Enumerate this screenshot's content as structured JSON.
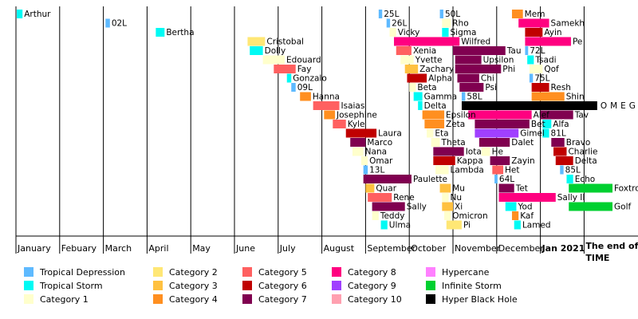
{
  "chart_data": {
    "type": "timeline",
    "title": "",
    "xlabel": "",
    "ylabel": "",
    "x_axis": {
      "months": [
        "January",
        "Febuary",
        "March",
        "April",
        "May",
        "June",
        "July",
        "August",
        "September",
        "October",
        "November",
        "December",
        "Jan 2021"
      ],
      "end_label_line1": "The end of",
      "end_label_line2": "TIME"
    },
    "grid": "vertical month lines",
    "legend": {
      "placement": "bottom",
      "items": [
        {
          "name": "Tropical Depression",
          "color": "#5ebaff"
        },
        {
          "name": "Tropical Storm",
          "color": "#00faf4"
        },
        {
          "name": "Category 1",
          "color": "#ffffcc"
        },
        {
          "name": "Category 2",
          "color": "#ffe775"
        },
        {
          "name": "Category 3",
          "color": "#ffc140"
        },
        {
          "name": "Category 4",
          "color": "#ff8f20"
        },
        {
          "name": "Category 5",
          "color": "#ff6060"
        },
        {
          "name": "Category 6",
          "color": "#c00000"
        },
        {
          "name": "Category 7",
          "color": "#800050"
        },
        {
          "name": "Category 8",
          "color": "#ff0080"
        },
        {
          "name": "Category 9",
          "color": "#a040ff"
        },
        {
          "name": "Category 10",
          "color": "#ffa0b0"
        },
        {
          "name": "Hypercane",
          "color": "#ff80ff"
        },
        {
          "name": "Infinite Storm",
          "color": "#00d030"
        },
        {
          "name": "Hyper Black Hole",
          "color": "#000000"
        }
      ]
    },
    "storms": [
      {
        "name": "Arthur",
        "start": 0.02,
        "end": 0.15,
        "row": 0,
        "cat": "Tropical Storm"
      },
      {
        "name": "02L",
        "start": 2.05,
        "end": 2.15,
        "row": 1,
        "cat": "Tropical Depression"
      },
      {
        "name": "Bertha",
        "start": 3.2,
        "end": 3.4,
        "row": 2,
        "cat": "Tropical Storm"
      },
      {
        "name": "Cristobal",
        "start": 5.3,
        "end": 5.7,
        "row": 3,
        "cat": "Category 2"
      },
      {
        "name": "Dolly",
        "start": 5.35,
        "end": 5.65,
        "row": 4,
        "cat": "Tropical Storm"
      },
      {
        "name": "Edouard",
        "start": 5.65,
        "end": 6.15,
        "row": 5,
        "cat": "Category 1"
      },
      {
        "name": "Fay",
        "start": 5.9,
        "end": 6.4,
        "row": 6,
        "cat": "Category 5"
      },
      {
        "name": "Gonzalo",
        "start": 6.2,
        "end": 6.3,
        "row": 7,
        "cat": "Tropical Storm"
      },
      {
        "name": "09L",
        "start": 6.3,
        "end": 6.4,
        "row": 8,
        "cat": "Tropical Depression"
      },
      {
        "name": "Hanna",
        "start": 6.5,
        "end": 6.75,
        "row": 9,
        "cat": "Category 4"
      },
      {
        "name": "Isaias",
        "start": 6.8,
        "end": 7.4,
        "row": 10,
        "cat": "Category 5"
      },
      {
        "name": "Josephine",
        "start": 7.05,
        "end": 7.3,
        "row": 11,
        "cat": "Category 4"
      },
      {
        "name": "Kyle",
        "start": 7.25,
        "end": 7.55,
        "row": 12,
        "cat": "Category 5"
      },
      {
        "name": "Laura",
        "start": 7.55,
        "end": 8.25,
        "row": 13,
        "cat": "Category 6"
      },
      {
        "name": "Marco",
        "start": 7.65,
        "end": 8.0,
        "row": 14,
        "cat": "Category 7"
      },
      {
        "name": "Nana",
        "start": 7.7,
        "end": 7.95,
        "row": 15,
        "cat": "Category 1"
      },
      {
        "name": "Omar",
        "start": 7.9,
        "end": 8.05,
        "row": 16,
        "cat": "Category 1"
      },
      {
        "name": "13L",
        "start": 7.95,
        "end": 8.05,
        "row": 17,
        "cat": "Tropical Depression"
      },
      {
        "name": "Paulette",
        "start": 7.95,
        "end": 9.05,
        "row": 18,
        "cat": "Category 7"
      },
      {
        "name": "Quar",
        "start": 8.0,
        "end": 8.2,
        "row": 19,
        "cat": "Category 3"
      },
      {
        "name": "Rene",
        "start": 8.05,
        "end": 8.6,
        "row": 20,
        "cat": "Category 5"
      },
      {
        "name": "Sally",
        "start": 8.15,
        "end": 8.9,
        "row": 21,
        "cat": "Category 7"
      },
      {
        "name": "Teddy",
        "start": 8.15,
        "end": 8.3,
        "row": 22,
        "cat": "Category 1"
      },
      {
        "name": "Ulma",
        "start": 8.35,
        "end": 8.5,
        "row": 23,
        "cat": "Tropical Storm"
      },
      {
        "name": "25L",
        "start": 8.3,
        "end": 8.38,
        "row": 0,
        "cat": "Tropical Depression"
      },
      {
        "name": "26L",
        "start": 8.48,
        "end": 8.56,
        "row": 1,
        "cat": "Tropical Depression"
      },
      {
        "name": "Vicky",
        "start": 8.55,
        "end": 8.7,
        "row": 2,
        "cat": "Category 1"
      },
      {
        "name": "Wilfred",
        "start": 8.65,
        "end": 10.15,
        "row": 3,
        "cat": "Category 8"
      },
      {
        "name": "Xenia",
        "start": 8.7,
        "end": 9.05,
        "row": 4,
        "cat": "Category 5"
      },
      {
        "name": "Yvette",
        "start": 8.8,
        "end": 9.1,
        "row": 5,
        "cat": "Category 1"
      },
      {
        "name": "Zachary",
        "start": 8.9,
        "end": 9.2,
        "row": 6,
        "cat": "Category 3"
      },
      {
        "name": "Alpha",
        "start": 8.95,
        "end": 9.4,
        "row": 7,
        "cat": "Category 6"
      },
      {
        "name": "Beta",
        "start": 9.0,
        "end": 9.15,
        "row": 8,
        "cat": "Category 1"
      },
      {
        "name": "Gamma",
        "start": 9.1,
        "end": 9.3,
        "row": 9,
        "cat": "Tropical Storm"
      },
      {
        "name": "Delta",
        "start": 9.2,
        "end": 9.3,
        "row": 10,
        "cat": "Tropical Storm"
      },
      {
        "name": "Epsilon",
        "start": 9.3,
        "end": 9.8,
        "row": 11,
        "cat": "Category 4"
      },
      {
        "name": "Zeta",
        "start": 9.35,
        "end": 9.8,
        "row": 12,
        "cat": "Category 4"
      },
      {
        "name": "Eta",
        "start": 9.4,
        "end": 9.55,
        "row": 13,
        "cat": "Category 1"
      },
      {
        "name": "Theta",
        "start": 9.5,
        "end": 9.7,
        "row": 14,
        "cat": "Category 1"
      },
      {
        "name": "Iota",
        "start": 9.55,
        "end": 10.25,
        "row": 15,
        "cat": "Category 7"
      },
      {
        "name": "Kappa",
        "start": 9.55,
        "end": 10.05,
        "row": 16,
        "cat": "Category 6"
      },
      {
        "name": "Lambda",
        "start": 9.6,
        "end": 9.9,
        "row": 17,
        "cat": "Category 1"
      },
      {
        "name": "Mu",
        "start": 9.7,
        "end": 9.95,
        "row": 19,
        "cat": "Category 3"
      },
      {
        "name": "Nu",
        "start": 9.75,
        "end": 9.9,
        "row": 20,
        "cat": "Category 1"
      },
      {
        "name": "Xi",
        "start": 9.75,
        "end": 10.0,
        "row": 21,
        "cat": "Category 3"
      },
      {
        "name": "Omicron",
        "start": 9.8,
        "end": 9.95,
        "row": 22,
        "cat": "Category 1"
      },
      {
        "name": "Pi",
        "start": 9.85,
        "end": 10.2,
        "row": 23,
        "cat": "Category 2"
      },
      {
        "name": "50L",
        "start": 9.7,
        "end": 9.78,
        "row": 0,
        "cat": "Tropical Depression"
      },
      {
        "name": "Rho",
        "start": 9.75,
        "end": 9.95,
        "row": 1,
        "cat": "Category 1"
      },
      {
        "name": "Sigma",
        "start": 9.75,
        "end": 9.9,
        "row": 2,
        "cat": "Tropical Storm"
      },
      {
        "name": "Tau",
        "start": 10.0,
        "end": 11.2,
        "row": 4,
        "cat": "Category 7"
      },
      {
        "name": "Upsilon",
        "start": 10.05,
        "end": 10.65,
        "row": 5,
        "cat": "Category 7"
      },
      {
        "name": "Phi",
        "start": 10.05,
        "end": 11.1,
        "row": 6,
        "cat": "Category 7"
      },
      {
        "name": "Chi",
        "start": 10.1,
        "end": 10.6,
        "row": 7,
        "cat": "Category 7"
      },
      {
        "name": "Psi",
        "start": 10.15,
        "end": 10.7,
        "row": 8,
        "cat": "Category 7"
      },
      {
        "name": "58L",
        "start": 10.2,
        "end": 10.28,
        "row": 9,
        "cat": "Tropical Depression"
      },
      {
        "name": "OMEGA",
        "start": 10.2,
        "end": 13.3,
        "row": 10,
        "cat": "Hyper Black Hole"
      },
      {
        "name": "Alef",
        "start": 10.35,
        "end": 11.8,
        "row": 11,
        "cat": "Category 8"
      },
      {
        "name": "Bet",
        "start": 10.5,
        "end": 11.75,
        "row": 12,
        "cat": "Category 7"
      },
      {
        "name": "Gimel",
        "start": 10.5,
        "end": 11.5,
        "row": 13,
        "cat": "Category 9"
      },
      {
        "name": "Dalet",
        "start": 10.6,
        "end": 11.3,
        "row": 14,
        "cat": "Category 7"
      },
      {
        "name": "He",
        "start": 10.65,
        "end": 10.85,
        "row": 15,
        "cat": "Category 1"
      },
      {
        "name": "Zayin",
        "start": 10.85,
        "end": 11.3,
        "row": 16,
        "cat": "Category 7"
      },
      {
        "name": "Het",
        "start": 10.9,
        "end": 11.15,
        "row": 17,
        "cat": "Category 5"
      },
      {
        "name": "64L",
        "start": 10.95,
        "end": 11.02,
        "row": 18,
        "cat": "Tropical Depression"
      },
      {
        "name": "Tet",
        "start": 11.05,
        "end": 11.4,
        "row": 19,
        "cat": "Category 7"
      },
      {
        "name": "Sally II",
        "start": 11.05,
        "end": 12.35,
        "row": 20,
        "cat": "Category 8"
      },
      {
        "name": "Yod",
        "start": 11.2,
        "end": 11.45,
        "row": 21,
        "cat": "Tropical Storm"
      },
      {
        "name": "Kaf",
        "start": 11.35,
        "end": 11.5,
        "row": 22,
        "cat": "Category 4"
      },
      {
        "name": "Lamed",
        "start": 11.4,
        "end": 11.55,
        "row": 23,
        "cat": "Tropical Storm"
      },
      {
        "name": "Mem",
        "start": 11.35,
        "end": 11.6,
        "row": 0,
        "cat": "Category 4"
      },
      {
        "name": "Samekh",
        "start": 11.5,
        "end": 12.2,
        "row": 1,
        "cat": "Category 8"
      },
      {
        "name": "Ayin",
        "start": 11.65,
        "end": 12.05,
        "row": 2,
        "cat": "Category 6"
      },
      {
        "name": "Pe",
        "start": 11.65,
        "end": 12.7,
        "row": 3,
        "cat": "Category 8"
      },
      {
        "name": "72L",
        "start": 11.65,
        "end": 11.72,
        "row": 4,
        "cat": "Tropical Depression"
      },
      {
        "name": "Tsadi",
        "start": 11.7,
        "end": 11.85,
        "row": 5,
        "cat": "Tropical Storm"
      },
      {
        "name": "Qof",
        "start": 11.75,
        "end": 12.05,
        "row": 6,
        "cat": "Category 1"
      },
      {
        "name": "75L",
        "start": 11.75,
        "end": 11.83,
        "row": 7,
        "cat": "Tropical Depression"
      },
      {
        "name": "Resh",
        "start": 11.8,
        "end": 12.2,
        "row": 8,
        "cat": "Category 6"
      },
      {
        "name": "Shin",
        "start": 11.8,
        "end": 12.55,
        "row": 9,
        "cat": "Category 4"
      },
      {
        "name": "Tav",
        "start": 12.0,
        "end": 12.75,
        "row": 11,
        "cat": "Category 7"
      },
      {
        "name": "Alfa",
        "start": 12.05,
        "end": 12.25,
        "row": 12,
        "cat": "Tropical Storm"
      },
      {
        "name": "81L",
        "start": 12.05,
        "end": 12.2,
        "row": 13,
        "cat": "Tropical Storm"
      },
      {
        "name": "Bravo",
        "start": 12.25,
        "end": 12.55,
        "row": 14,
        "cat": "Category 7"
      },
      {
        "name": "Charlie",
        "start": 12.3,
        "end": 12.6,
        "row": 15,
        "cat": "Category 6"
      },
      {
        "name": "Delta",
        "start": 12.35,
        "end": 12.75,
        "row": 16,
        "cat": "Category 6"
      },
      {
        "name": "85L",
        "start": 12.45,
        "end": 12.53,
        "row": 17,
        "cat": "Tropical Depression"
      },
      {
        "name": "Echo",
        "start": 12.6,
        "end": 12.75,
        "row": 18,
        "cat": "Tropical Storm"
      },
      {
        "name": "Foxtrot",
        "start": 12.65,
        "end": 13.65,
        "row": 19,
        "cat": "Infinite Storm"
      },
      {
        "name": "Golf",
        "start": 12.65,
        "end": 13.65,
        "row": 21,
        "cat": "Infinite Storm"
      }
    ]
  }
}
